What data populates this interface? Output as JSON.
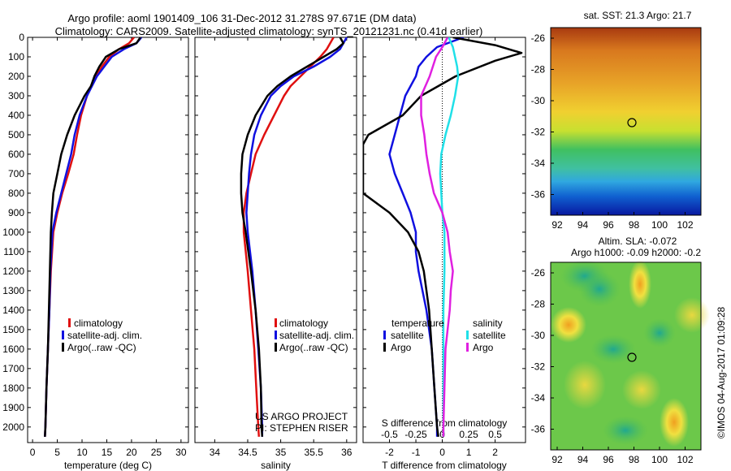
{
  "title_line1": "Argo profile: aoml 1901409_106 31-Dec-2012 31.278S 97.671E (DM data)",
  "title_line2": "Climatology: CARS2009. Satellite-adjusted climatology: synTS_20121231.nc (0.41d earlier)",
  "colors": {
    "climatology": "#e01010",
    "satellite": "#1010e0",
    "argo": "#000000",
    "sat_salinity": "#20e0e8",
    "argo_salinity": "#e020e0"
  },
  "depth_ticks": [
    0,
    100,
    200,
    300,
    400,
    500,
    600,
    700,
    800,
    900,
    1000,
    1100,
    1200,
    1300,
    1400,
    1500,
    1600,
    1700,
    1800,
    1900,
    2000
  ],
  "legend": {
    "climatology": "climatology",
    "satellite_adj": "satellite-adj. clim.",
    "argo": "Argo(..raw -QC)"
  },
  "diff_legend": {
    "temperature": "temperature",
    "salinity": "salinity",
    "satellite": "satellite",
    "argo": "Argo"
  },
  "credit_line1": "US ARGO PROJECT",
  "credit_line2": "PI: STEPHEN RISER",
  "map1_title": "sat. SST: 21.3 Argo: 21.7",
  "map2_title_line1": "Altim. SLA: -0.072",
  "map2_title_line2": "Argo h1000: -0.09 h2000: -0.2",
  "footer_vertical": "©IMOS 04-Aug-2017 01:09:28",
  "map_lat_ticks": [
    "-26",
    "-28",
    "-30",
    "-32",
    "-34",
    "-36"
  ],
  "map_lon_ticks": [
    "92",
    "94",
    "96",
    "98",
    "100",
    "102"
  ],
  "chart_data": [
    {
      "type": "line",
      "xlabel": "temperature (deg C)",
      "ylabel": "",
      "xlim": [
        -1,
        31.5
      ],
      "ylim": [
        2080,
        0
      ],
      "xticks": [
        0,
        5,
        10,
        15,
        20,
        25,
        30
      ],
      "series": [
        {
          "name": "climatology",
          "color": "#e01010",
          "depth": [
            0,
            30,
            60,
            100,
            150,
            200,
            250,
            300,
            400,
            500,
            600,
            700,
            800,
            900,
            1000,
            1200,
            1400,
            1600,
            1800,
            2000,
            2050
          ],
          "values": [
            20.5,
            19.5,
            17.5,
            15.5,
            14,
            12.8,
            11.8,
            11,
            9.8,
            9,
            8.3,
            7.2,
            6,
            5,
            4.2,
            3.7,
            3.4,
            3.1,
            2.8,
            2.6,
            2.5
          ]
        },
        {
          "name": "satellite-adj. clim.",
          "color": "#1010e0",
          "depth": [
            0,
            30,
            60,
            100,
            150,
            200,
            250,
            300,
            400,
            500,
            600,
            700,
            800,
            900,
            1000,
            1200,
            1400,
            1600,
            1800,
            2000,
            2050
          ],
          "values": [
            22,
            21,
            18.5,
            16,
            14.5,
            13,
            12,
            11,
            9.5,
            8.5,
            7.8,
            6.8,
            5.8,
            4.8,
            4,
            3.6,
            3.4,
            3.1,
            2.8,
            2.6,
            2.5
          ]
        },
        {
          "name": "Argo(..raw -QC)",
          "color": "#000000",
          "depth": [
            0,
            30,
            60,
            100,
            150,
            200,
            250,
            300,
            400,
            500,
            600,
            700,
            800,
            900,
            1000,
            1200,
            1400,
            1600,
            1800,
            2000,
            2050
          ],
          "values": [
            21.8,
            21,
            17.5,
            14.8,
            13.5,
            12.5,
            11.8,
            10.5,
            8.5,
            7,
            5.8,
            5,
            4.2,
            3.9,
            3.7,
            3.5,
            3.3,
            3.1,
            2.8,
            2.6,
            2.5
          ]
        }
      ]
    },
    {
      "type": "line",
      "xlabel": "salinity",
      "ylabel": "",
      "xlim": [
        33.7,
        36.15
      ],
      "ylim": [
        2080,
        0
      ],
      "xticks": [
        34,
        34.5,
        35,
        35.5,
        36
      ],
      "series": [
        {
          "name": "climatology",
          "color": "#e01010",
          "depth": [
            0,
            30,
            60,
            100,
            150,
            200,
            250,
            300,
            400,
            500,
            600,
            700,
            800,
            900,
            1000,
            1200,
            1400,
            1600,
            1800,
            2000,
            2050
          ],
          "values": [
            35.8,
            35.75,
            35.7,
            35.6,
            35.45,
            35.3,
            35.15,
            35.05,
            34.9,
            34.75,
            34.62,
            34.55,
            34.48,
            34.44,
            34.44,
            34.5,
            34.55,
            34.6,
            34.63,
            34.66,
            34.67
          ]
        },
        {
          "name": "satellite-adj. clim.",
          "color": "#1010e0",
          "depth": [
            0,
            30,
            60,
            100,
            150,
            200,
            250,
            300,
            400,
            500,
            600,
            700,
            800,
            900,
            1000,
            1200,
            1400,
            1600,
            1800,
            2000,
            2050
          ],
          "values": [
            36,
            35.95,
            35.9,
            35.75,
            35.5,
            35.2,
            35.0,
            34.85,
            34.7,
            34.6,
            34.55,
            34.52,
            34.5,
            34.48,
            34.5,
            34.57,
            34.62,
            34.66,
            34.7,
            34.72,
            34.72
          ]
        },
        {
          "name": "Argo(..raw -QC)",
          "color": "#000000",
          "depth": [
            0,
            30,
            60,
            100,
            150,
            200,
            250,
            300,
            400,
            500,
            600,
            700,
            800,
            900,
            1000,
            1200,
            1400,
            1600,
            1800,
            2000,
            2050
          ],
          "values": [
            35.9,
            35.95,
            35.85,
            35.65,
            35.4,
            35.15,
            34.95,
            34.8,
            34.62,
            34.5,
            34.42,
            34.4,
            34.4,
            34.42,
            34.47,
            34.55,
            34.62,
            34.67,
            34.7,
            34.71,
            34.72
          ]
        }
      ]
    },
    {
      "type": "line",
      "xlabel": "T difference from climatology",
      "ylabel": "",
      "top_label": "S difference from climatology",
      "xlim": [
        -3,
        3.15
      ],
      "ylim": [
        2080,
        0
      ],
      "xticks": [
        -2,
        -1,
        0,
        1,
        2
      ],
      "xticks_top": [
        "-0.5",
        "-0.25",
        "0",
        "0.25",
        "0.5"
      ],
      "series": [
        {
          "name": "temperature satellite",
          "color": "#1010e0",
          "depth": [
            0,
            50,
            100,
            150,
            200,
            300,
            400,
            500,
            600,
            700,
            800,
            900,
            1000,
            1100,
            1200,
            1400,
            1600,
            1800,
            2000,
            2050
          ],
          "values": [
            0.8,
            -0.2,
            -0.6,
            -0.9,
            -1.0,
            -1.4,
            -1.6,
            -1.8,
            -2.0,
            -1.8,
            -1.5,
            -1.2,
            -1.0,
            -1.0,
            -0.9,
            -0.6,
            -0.4,
            -0.3,
            -0.2,
            -0.2
          ]
        },
        {
          "name": "temperature Argo",
          "color": "#000000",
          "depth": [
            0,
            40,
            80,
            120,
            200,
            300,
            400,
            500,
            550,
            600,
            700,
            750,
            800,
            900,
            1000,
            1100,
            1200,
            1400,
            1600,
            1800,
            2000,
            2050
          ],
          "values": [
            0.4,
            2.0,
            3.0,
            2.0,
            0.5,
            -0.8,
            -1.5,
            -2.8,
            -3.0,
            -3.0,
            -3.0,
            -3.0,
            -3.0,
            -2.0,
            -1.3,
            -0.9,
            -0.7,
            -0.5,
            -0.4,
            -0.3,
            -0.2,
            -0.15
          ]
        },
        {
          "name": "salinity satellite",
          "color": "#20e0e8",
          "depth": [
            0,
            50,
            100,
            150,
            200,
            300,
            400,
            500,
            600,
            700,
            800,
            900,
            1000,
            1100,
            1200,
            1400,
            1600,
            1800,
            2000,
            2050
          ],
          "values": [
            0.06,
            0.1,
            0.12,
            0.14,
            0.15,
            0.12,
            0.08,
            0.03,
            -0.01,
            -0.02,
            -0.01,
            0.0,
            0.02,
            0.02,
            0.02,
            0.01,
            0.01,
            0.01,
            0.01,
            0.01
          ]
        },
        {
          "name": "salinity Argo",
          "color": "#e020e0",
          "depth": [
            0,
            50,
            100,
            150,
            200,
            300,
            400,
            500,
            600,
            700,
            800,
            900,
            1000,
            1100,
            1200,
            1300,
            1400,
            1500,
            1600,
            1800,
            2000,
            2050
          ],
          "values": [
            0.05,
            0.0,
            -0.06,
            -0.09,
            -0.12,
            -0.2,
            -0.2,
            -0.17,
            -0.15,
            -0.12,
            -0.08,
            0.0,
            0.05,
            0.07,
            0.1,
            0.08,
            0.07,
            0.05,
            0.03,
            0.02,
            0.01,
            0.01
          ]
        }
      ]
    }
  ]
}
